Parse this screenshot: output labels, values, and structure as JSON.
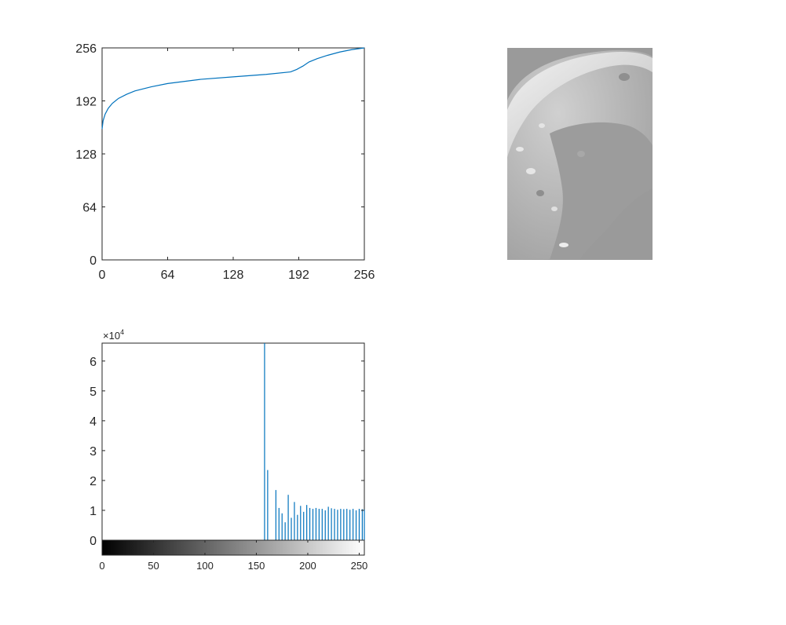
{
  "chart_data": [
    {
      "type": "line",
      "xlim": [
        0,
        256
      ],
      "ylim": [
        0,
        256
      ],
      "xticks": [
        "0",
        "64",
        "128",
        "192",
        "256"
      ],
      "yticks": [
        "0",
        "64",
        "128",
        "192",
        "256"
      ],
      "series_color": "#0072BD",
      "x": [
        0,
        1,
        3,
        6,
        10,
        16,
        24,
        32,
        48,
        64,
        96,
        128,
        160,
        184,
        190,
        196,
        202,
        210,
        220,
        232,
        244,
        256
      ],
      "y": [
        158,
        168,
        176,
        183,
        189,
        195,
        200,
        204,
        209,
        213,
        218,
        221,
        224,
        227,
        230,
        234,
        239,
        243,
        247,
        251,
        254,
        256
      ]
    },
    {
      "type": "image",
      "description_colors": {
        "background": "#9a9a9a",
        "bright": "#e8e8e8"
      }
    },
    {
      "type": "bar",
      "xlim": [
        0,
        255
      ],
      "ylim": [
        0,
        66000
      ],
      "exponent_label": "×10",
      "exponent_power": "4",
      "yticks": [
        "0",
        "1",
        "2",
        "3",
        "4",
        "5",
        "6"
      ],
      "colorbar_ticks": [
        "0",
        "50",
        "100",
        "150",
        "200",
        "250"
      ],
      "series_color": "#0072BD",
      "x": [
        158,
        161,
        169,
        172,
        175,
        178,
        181,
        184,
        187,
        190,
        193,
        196,
        199,
        202,
        205,
        208,
        211,
        214,
        217,
        220,
        223,
        226,
        229,
        232,
        235,
        238,
        241,
        244,
        247,
        250,
        253,
        255
      ],
      "values": [
        66000,
        23500,
        16800,
        10800,
        9000,
        6000,
        15200,
        7500,
        12800,
        8500,
        11500,
        9500,
        11800,
        10800,
        10500,
        10800,
        10500,
        10500,
        10000,
        11200,
        10700,
        10500,
        10200,
        10500,
        10400,
        10500,
        10200,
        10500,
        10000,
        10500,
        10400,
        10300
      ]
    }
  ]
}
